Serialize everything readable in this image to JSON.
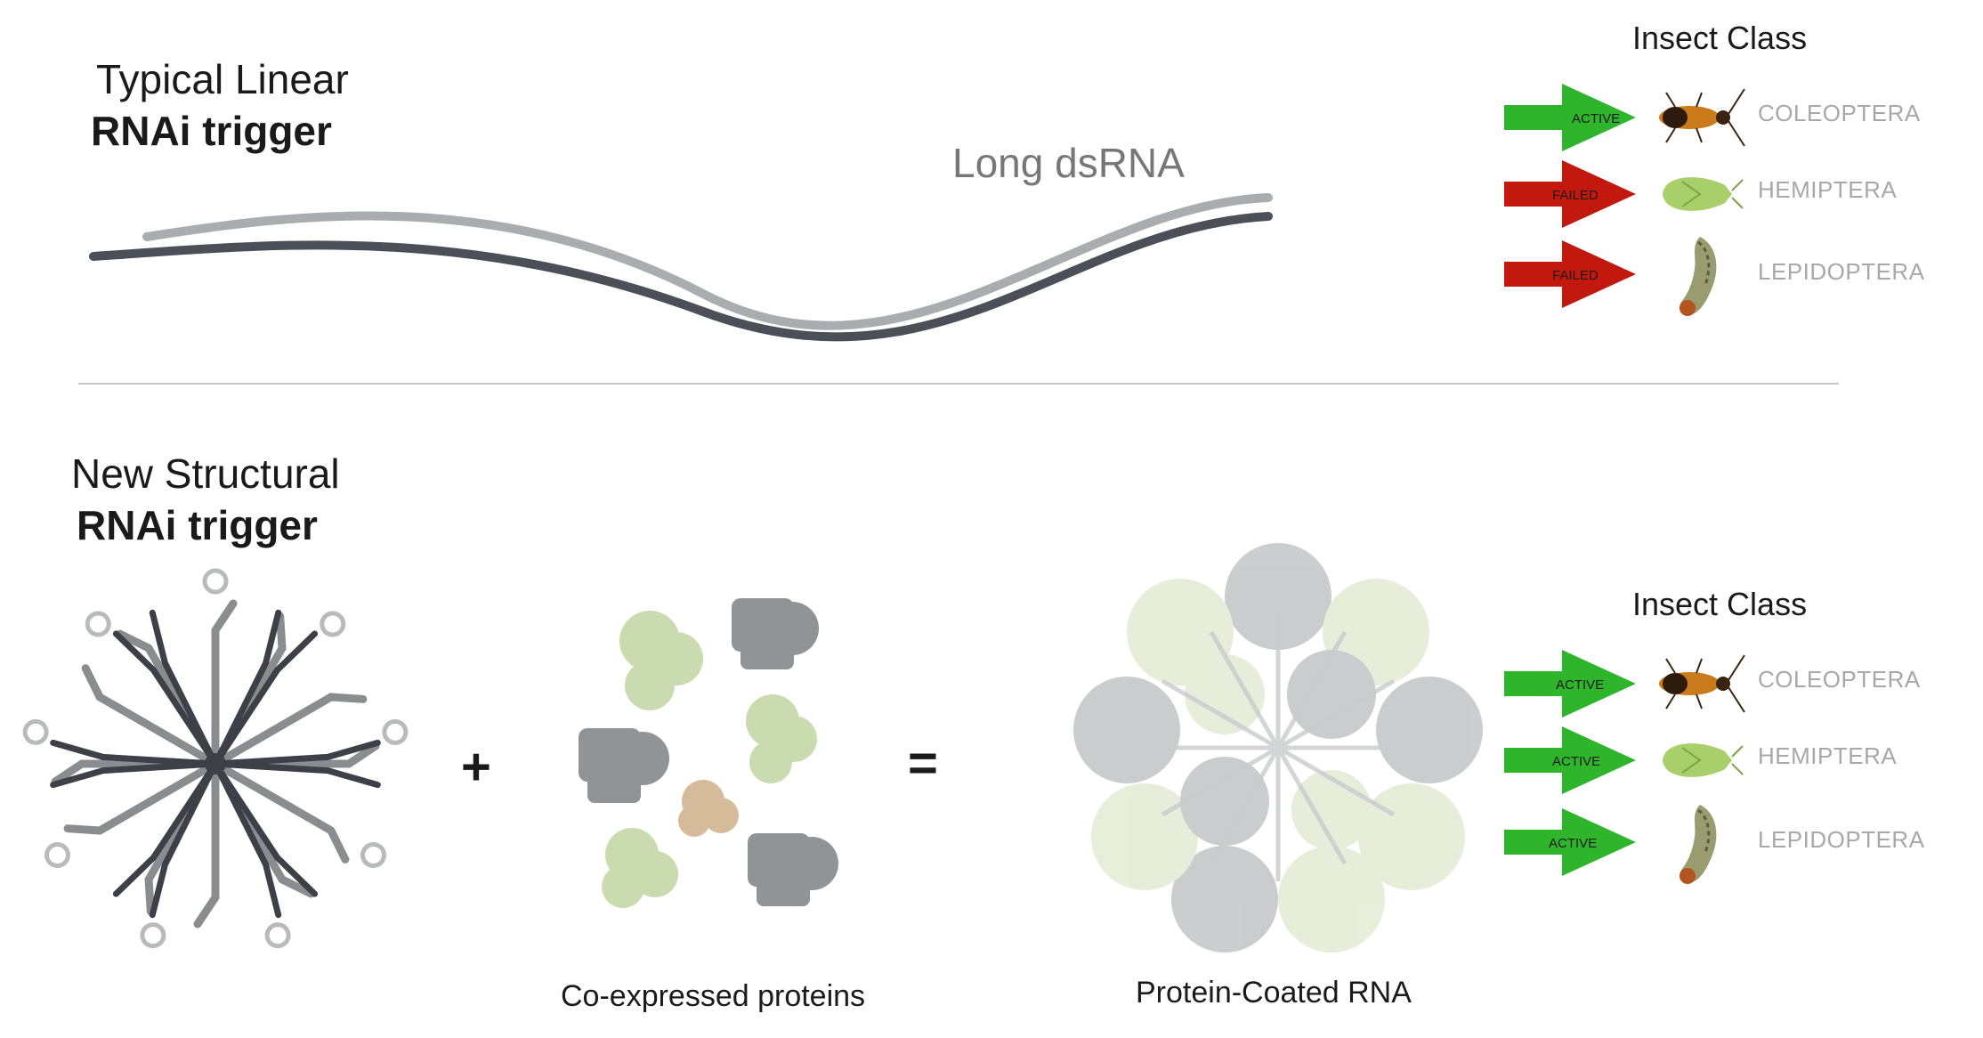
{
  "top": {
    "title_line1": "Typical Linear",
    "title_line2": "RNAi trigger",
    "strand_label": "Long dsRNA",
    "insect_header": "Insect Class",
    "rows": [
      {
        "status": "ACTIVE",
        "color": "#2fb52b",
        "insect": "COLEOPTERA",
        "icon": "beetle-icon"
      },
      {
        "status": "FAILED",
        "color": "#c3180e",
        "insect": "HEMIPTERA",
        "icon": "stink-bug-icon"
      },
      {
        "status": "FAILED",
        "color": "#c3180e",
        "insect": "LEPIDOPTERA",
        "icon": "caterpillar-icon"
      }
    ]
  },
  "bottom": {
    "title_line1": "New Structural",
    "title_line2": "RNAi trigger",
    "plus": "+",
    "equals": "=",
    "proteins_caption": "Co-expressed proteins",
    "coated_caption": "Protein-Coated RNA",
    "insect_header": "Insect Class",
    "rows": [
      {
        "status": "ACTIVE",
        "color": "#2fb52b",
        "insect": "COLEOPTERA",
        "icon": "beetle-icon"
      },
      {
        "status": "ACTIVE",
        "color": "#2fb52b",
        "insect": "HEMIPTERA",
        "icon": "stink-bug-icon"
      },
      {
        "status": "ACTIVE",
        "color": "#2fb52b",
        "insect": "LEPIDOPTERA",
        "icon": "caterpillar-icon"
      }
    ]
  },
  "colors": {
    "strand_light": "#a9adaf",
    "strand_dark": "#4a4f58",
    "divider": "#c8c8c8",
    "protein_green": "#b9cf95",
    "protein_gray": "#6d6f73",
    "protein_orange": "#c9a57a"
  }
}
